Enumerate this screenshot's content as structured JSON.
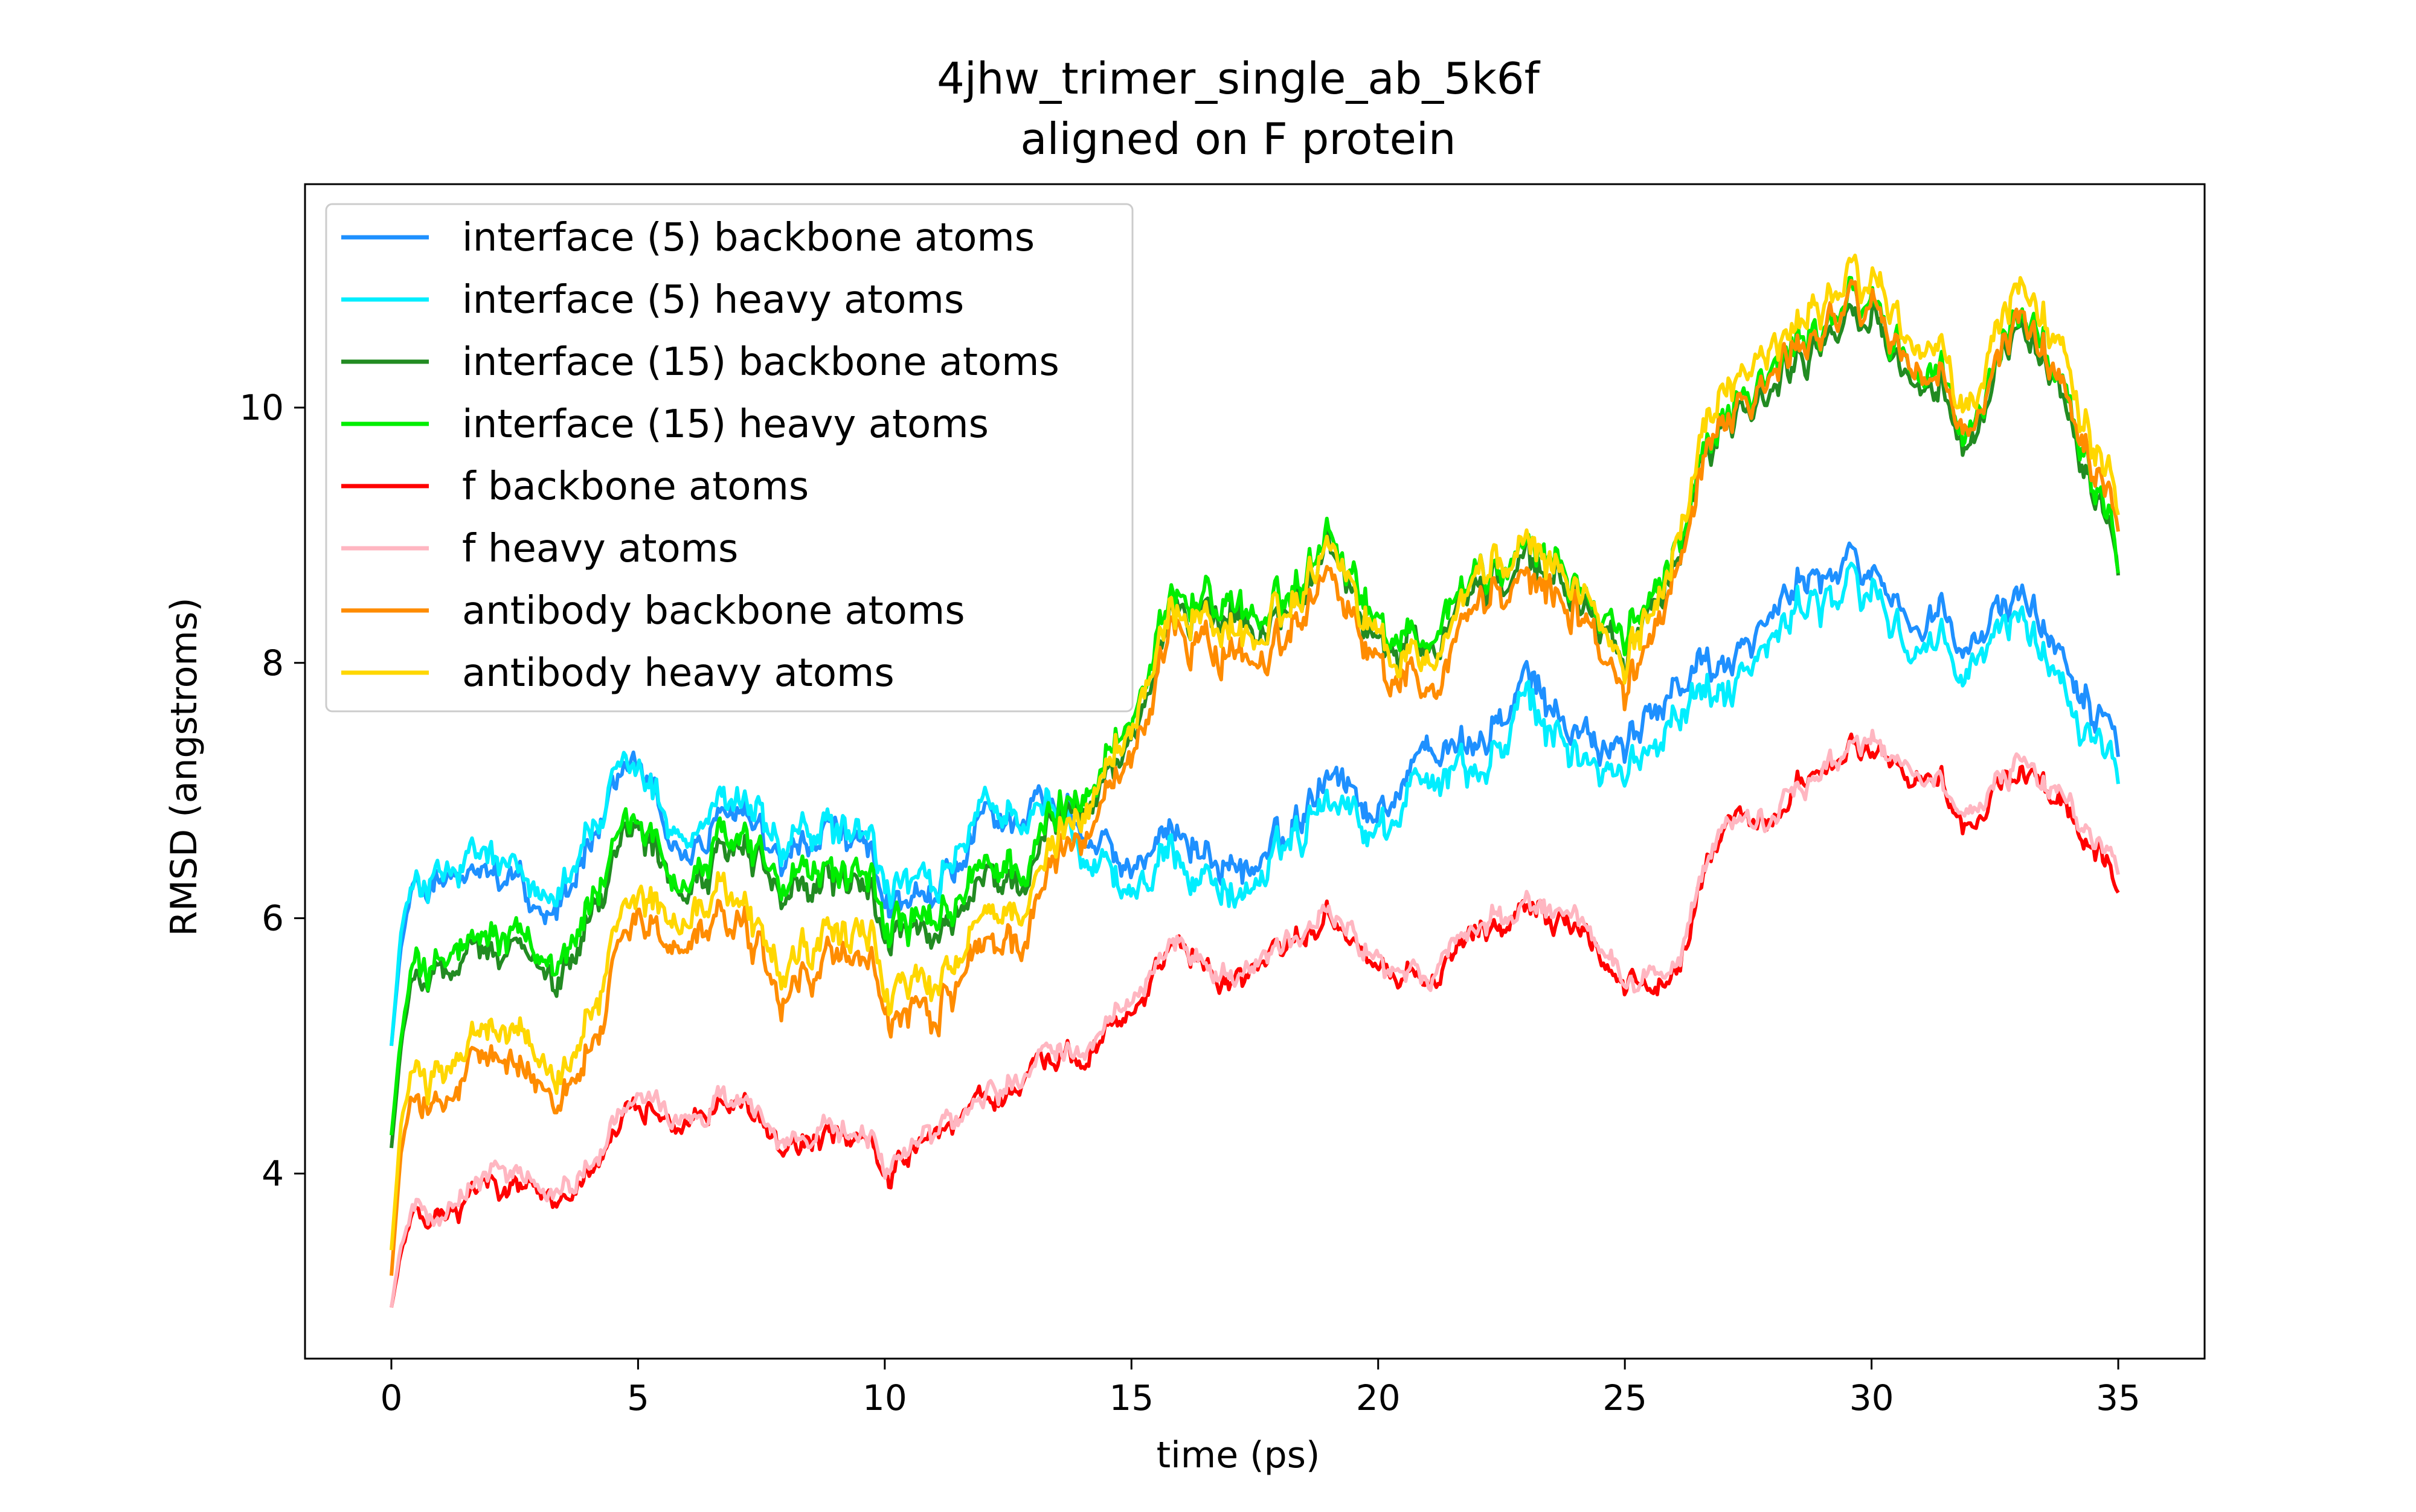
{
  "chart_data": {
    "type": "line",
    "title": [
      "4jhw_trimer_single_ab_5k6f",
      "aligned on F protein"
    ],
    "xlabel": "time (ps)",
    "ylabel": "RMSD (angstroms)",
    "xlim": [
      -1.75,
      36.75
    ],
    "ylim": [
      2.55,
      11.75
    ],
    "xticks": [
      0,
      5,
      10,
      15,
      20,
      25,
      30,
      35
    ],
    "yticks": [
      4,
      6,
      8,
      10
    ],
    "grid": false,
    "legend_position": "upper-left",
    "series": [
      {
        "name": "interface (5) backbone atoms",
        "color": "#1e90ff",
        "noise": 0.32,
        "x": [
          0,
          0.2,
          0.5,
          1,
          2,
          3,
          4,
          5,
          6,
          7,
          8,
          9,
          10,
          11,
          12,
          13,
          14,
          15,
          16,
          17,
          18,
          19,
          20,
          21,
          22,
          23,
          24,
          25,
          26,
          27,
          28,
          29,
          30,
          31,
          32,
          33,
          34,
          35
        ],
        "y": [
          5.0,
          5.8,
          6.3,
          6.2,
          6.3,
          6.0,
          6.6,
          7.1,
          6.5,
          6.8,
          6.3,
          6.7,
          6.2,
          6.0,
          6.7,
          6.9,
          6.8,
          6.4,
          6.7,
          6.4,
          6.5,
          7.3,
          6.8,
          7.4,
          7.3,
          7.8,
          7.5,
          7.2,
          7.9,
          8.1,
          8.3,
          8.8,
          8.7,
          8.3,
          8.1,
          8.6,
          8.0,
          7.6
        ]
      },
      {
        "name": "interface (5) heavy atoms",
        "color": "#00eeff",
        "noise": 0.35,
        "x": [
          0,
          0.2,
          0.5,
          1,
          2,
          3,
          4,
          5,
          6,
          7,
          8,
          9,
          10,
          11,
          12,
          13,
          14,
          15,
          16,
          17,
          18,
          19,
          20,
          21,
          22,
          23,
          24,
          25,
          26,
          27,
          28,
          29,
          30,
          31,
          32,
          33,
          34,
          35
        ],
        "y": [
          5.0,
          5.9,
          6.3,
          6.3,
          6.4,
          6.1,
          6.7,
          7.1,
          6.6,
          6.9,
          6.4,
          6.7,
          6.3,
          6.1,
          6.8,
          6.9,
          6.7,
          6.2,
          6.5,
          6.2,
          6.4,
          7.1,
          6.7,
          7.2,
          7.1,
          7.6,
          7.3,
          7.0,
          7.7,
          7.9,
          8.1,
          8.6,
          8.5,
          8.1,
          7.9,
          8.4,
          7.8,
          7.4
        ]
      },
      {
        "name": "interface (15) backbone atoms",
        "color": "#228b22",
        "noise": 0.35,
        "x": [
          0,
          0.2,
          0.5,
          1,
          2,
          3,
          4,
          5,
          6,
          7,
          8,
          9,
          10,
          11,
          12,
          13,
          14,
          15,
          16,
          17,
          18,
          19,
          20,
          21,
          22,
          23,
          24,
          25,
          26,
          27,
          28,
          29,
          30,
          31,
          32,
          33,
          34,
          35
        ],
        "y": [
          4.2,
          5.0,
          5.6,
          5.5,
          5.7,
          5.5,
          6.0,
          6.6,
          6.2,
          6.5,
          6.0,
          6.3,
          5.9,
          5.7,
          6.2,
          6.4,
          7.0,
          7.4,
          8.5,
          8.4,
          8.2,
          9.1,
          8.2,
          8.1,
          8.6,
          8.7,
          8.6,
          7.9,
          8.9,
          10.0,
          10.1,
          10.6,
          10.7,
          10.2,
          9.6,
          10.7,
          10.1,
          9.0
        ]
      },
      {
        "name": "interface (15) heavy atoms",
        "color": "#00ee00",
        "noise": 0.38,
        "x": [
          0,
          0.2,
          0.5,
          1,
          2,
          3,
          4,
          5,
          6,
          7,
          8,
          9,
          10,
          11,
          12,
          13,
          14,
          15,
          16,
          17,
          18,
          19,
          20,
          21,
          22,
          23,
          24,
          25,
          26,
          27,
          28,
          29,
          30,
          31,
          32,
          33,
          34,
          35
        ],
        "y": [
          4.3,
          5.1,
          5.7,
          5.6,
          5.8,
          5.6,
          6.1,
          6.7,
          6.3,
          6.6,
          6.1,
          6.4,
          6.0,
          5.8,
          6.3,
          6.5,
          7.1,
          7.5,
          8.6,
          8.5,
          8.3,
          9.2,
          8.3,
          8.2,
          8.7,
          8.8,
          8.7,
          8.0,
          9.0,
          10.1,
          10.2,
          10.7,
          10.8,
          10.3,
          9.7,
          10.8,
          10.2,
          9.1
        ]
      },
      {
        "name": "f backbone atoms",
        "color": "#ff0000",
        "noise": 0.18,
        "x": [
          0,
          0.2,
          0.5,
          1,
          2,
          3,
          4,
          5,
          6,
          7,
          8,
          9,
          10,
          11,
          12,
          13,
          14,
          15,
          16,
          17,
          18,
          19,
          20,
          21,
          22,
          23,
          24,
          25,
          26,
          27,
          28,
          29,
          30,
          31,
          32,
          33,
          34,
          35
        ],
        "y": [
          2.95,
          3.4,
          3.7,
          3.6,
          3.9,
          3.8,
          4.0,
          4.5,
          4.4,
          4.5,
          4.1,
          4.3,
          4.0,
          4.2,
          4.5,
          4.8,
          5.0,
          5.3,
          5.8,
          5.5,
          5.7,
          6.1,
          5.6,
          5.5,
          5.9,
          6.0,
          6.0,
          5.4,
          5.6,
          6.8,
          6.7,
          7.2,
          7.3,
          7.1,
          6.7,
          7.2,
          6.9,
          6.4
        ]
      },
      {
        "name": "f heavy atoms",
        "color": "#ffb6c1",
        "noise": 0.18,
        "x": [
          0,
          0.2,
          0.5,
          1,
          2,
          3,
          4,
          5,
          6,
          7,
          8,
          9,
          10,
          11,
          12,
          13,
          14,
          15,
          16,
          17,
          18,
          19,
          20,
          21,
          22,
          23,
          24,
          25,
          26,
          27,
          28,
          29,
          30,
          31,
          32,
          33,
          34,
          35
        ],
        "y": [
          2.95,
          3.45,
          3.75,
          3.65,
          3.95,
          3.85,
          4.05,
          4.55,
          4.45,
          4.55,
          4.15,
          4.35,
          4.05,
          4.25,
          4.55,
          4.85,
          5.05,
          5.35,
          5.85,
          5.55,
          5.75,
          6.15,
          5.65,
          5.55,
          5.95,
          6.05,
          6.05,
          5.45,
          5.65,
          6.85,
          6.75,
          7.25,
          7.35,
          7.15,
          6.75,
          7.25,
          6.95,
          6.45
        ]
      },
      {
        "name": "antibody backbone atoms",
        "color": "#ff8c00",
        "noise": 0.35,
        "x": [
          0,
          0.2,
          0.5,
          1,
          2,
          3,
          4,
          5,
          6,
          7,
          8,
          9,
          10,
          11,
          12,
          13,
          14,
          15,
          16,
          17,
          18,
          19,
          20,
          21,
          22,
          23,
          24,
          25,
          26,
          27,
          28,
          29,
          30,
          31,
          32,
          33,
          34,
          35
        ],
        "y": [
          3.2,
          4.2,
          4.6,
          4.5,
          4.9,
          4.6,
          5.0,
          5.9,
          5.8,
          5.9,
          5.2,
          5.7,
          5.3,
          5.1,
          5.7,
          6.0,
          6.8,
          7.3,
          8.3,
          8.1,
          8.0,
          8.9,
          8.0,
          7.8,
          8.5,
          8.6,
          8.5,
          7.6,
          8.8,
          10.1,
          10.2,
          10.7,
          10.8,
          10.3,
          9.7,
          10.8,
          10.2,
          9.3
        ]
      },
      {
        "name": "antibody heavy atoms",
        "color": "#ffd700",
        "noise": 0.38,
        "x": [
          0,
          0.2,
          0.5,
          1,
          2,
          3,
          4,
          5,
          6,
          7,
          8,
          9,
          10,
          11,
          12,
          13,
          14,
          15,
          16,
          17,
          18,
          19,
          20,
          21,
          22,
          23,
          24,
          25,
          26,
          27,
          28,
          29,
          30,
          31,
          32,
          33,
          34,
          35
        ],
        "y": [
          3.4,
          4.4,
          4.8,
          4.7,
          5.1,
          4.8,
          5.2,
          6.1,
          6.0,
          6.1,
          5.4,
          5.9,
          5.5,
          5.3,
          5.9,
          6.2,
          7.0,
          7.5,
          8.5,
          8.3,
          8.2,
          9.1,
          8.2,
          8.0,
          8.7,
          8.8,
          8.7,
          7.8,
          9.0,
          10.3,
          10.4,
          10.9,
          11.0,
          10.5,
          9.9,
          11.0,
          10.4,
          9.5
        ]
      }
    ]
  }
}
